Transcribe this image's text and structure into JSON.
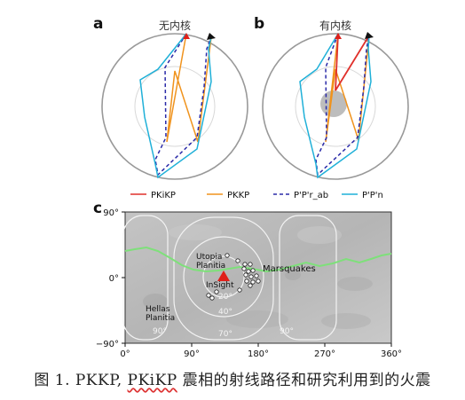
{
  "panels": {
    "a": {
      "label": "a",
      "title": "无内核"
    },
    "b": {
      "label": "b",
      "title": "有内核"
    },
    "c": {
      "label": "c"
    }
  },
  "legend": [
    {
      "label": "PKiKP",
      "color": "#e0302b",
      "dash": false
    },
    {
      "label": "PKKP",
      "color": "#f0931d",
      "dash": false
    },
    {
      "label": "P'P'r_ab",
      "color": "#2a2aa8",
      "dash": true
    },
    {
      "label": "P'P'n",
      "color": "#1fb0d8",
      "dash": false
    }
  ],
  "map": {
    "y_ticks": [
      "90°",
      "0°",
      "−90°"
    ],
    "x_ticks": [
      "0°",
      "90°",
      "180°",
      "270°",
      "360°"
    ],
    "place_labels": {
      "utopia": [
        "Utopia",
        "Planitia"
      ],
      "hellas": [
        "Hellas",
        "Planitia"
      ],
      "insight": "InSight",
      "marsquakes": "Marsquakes"
    },
    "contour_labels": {
      "c20": "20°",
      "c40": "40°",
      "c70": "70°",
      "c90a": "90°",
      "c90b": "90°"
    },
    "station_color": "#e0201a",
    "boundary_color": "#7ee07a"
  },
  "caption": {
    "prefix": "图 1. PKKP, ",
    "wavy": "PKiKP",
    "suffix": " 震相的射线路径和研究利用到的火震"
  }
}
